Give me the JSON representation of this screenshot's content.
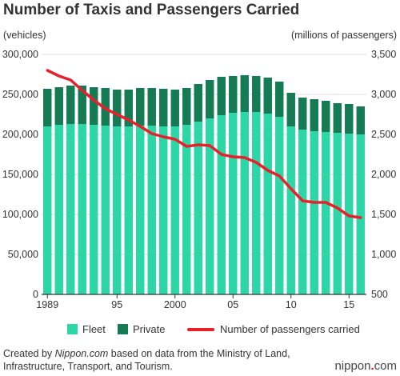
{
  "title": "Number of Taxis and Passengers Carried",
  "unit_left": "(vehicles)",
  "unit_right": "(millions of passengers)",
  "legend": {
    "fleet": "Fleet",
    "private": "Private",
    "passengers": "Number of passengers carried"
  },
  "footer": {
    "prefix": "Created by ",
    "source": "Nippon.com",
    "suffix": " based on data from the Ministry of Land, Infrastructure, Transport, and Tourism."
  },
  "brand": {
    "part1": "nippon",
    "dot": ".",
    "part2": "com"
  },
  "chart_data": {
    "type": "bar",
    "title": "Number of Taxis and Passengers Carried",
    "xlabel": "",
    "ylabel": "(vehicles)",
    "y2label": "(millions of passengers)",
    "x_tick_labels": [
      "1989",
      "95",
      "2000",
      "05",
      "10",
      "15"
    ],
    "categories": [
      1989,
      1990,
      1991,
      1992,
      1993,
      1994,
      1995,
      1996,
      1997,
      1998,
      1999,
      2000,
      2001,
      2002,
      2003,
      2004,
      2005,
      2006,
      2007,
      2008,
      2009,
      2010,
      2011,
      2012,
      2013,
      2014,
      2015,
      2016
    ],
    "ylim": [
      0,
      300000
    ],
    "y_ticks": [
      0,
      50000,
      100000,
      150000,
      200000,
      250000,
      300000
    ],
    "y_tick_labels": [
      "0",
      "50,000",
      "100,000",
      "150,000",
      "200,000",
      "250,000",
      "300,000"
    ],
    "y2lim": [
      500,
      3500
    ],
    "y2_ticks": [
      500,
      1000,
      1500,
      2000,
      2500,
      3000,
      3500
    ],
    "y2_tick_labels": [
      "500",
      "1,000",
      "1,500",
      "2,000",
      "2,500",
      "3,000",
      "3,500"
    ],
    "grid": true,
    "legend_position": "bottom",
    "series": [
      {
        "name": "Fleet",
        "kind": "bar-stack",
        "color": "#2dd6a6",
        "values": [
          210000,
          212000,
          213000,
          213000,
          212000,
          211000,
          210000,
          210000,
          211000,
          211000,
          210000,
          210000,
          212000,
          216000,
          220000,
          224000,
          227000,
          228000,
          228000,
          226000,
          222000,
          210000,
          206000,
          204000,
          203000,
          202000,
          201000,
          200000
        ]
      },
      {
        "name": "Private",
        "kind": "bar-stack",
        "color": "#147b55",
        "values": [
          47000,
          47000,
          48000,
          48000,
          47000,
          47000,
          46000,
          46000,
          47000,
          47000,
          47000,
          46000,
          46000,
          47000,
          48000,
          48000,
          46000,
          46000,
          45000,
          45000,
          44000,
          42000,
          40000,
          40000,
          39000,
          37000,
          37000,
          35000
        ]
      },
      {
        "name": "Number of passengers carried",
        "kind": "line",
        "axis": "right",
        "color": "#e8202a",
        "values": [
          3300,
          3230,
          3180,
          3050,
          2930,
          2820,
          2750,
          2680,
          2600,
          2510,
          2470,
          2440,
          2350,
          2370,
          2360,
          2250,
          2220,
          2210,
          2150,
          2050,
          1980,
          1820,
          1670,
          1650,
          1650,
          1580,
          1480,
          1460
        ]
      }
    ]
  }
}
